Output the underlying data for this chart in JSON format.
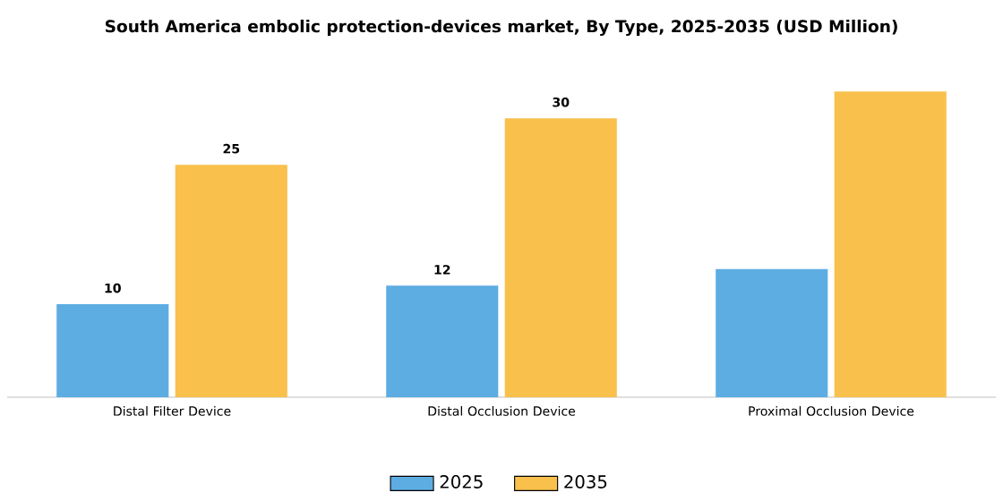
{
  "chart_data": {
    "type": "bar",
    "title": "South America embolic protection-devices market, By Type, 2025-2035 (USD Million)",
    "categories": [
      "Distal Filter Device",
      "Distal Occlusion Device",
      "Proximal Occlusion Device"
    ],
    "series": [
      {
        "name": "2025",
        "color": "#5dade2",
        "values": [
          10,
          12,
          13.8
        ],
        "value_labels": [
          "10",
          "12",
          null
        ]
      },
      {
        "name": "2035",
        "color": "#f9c04c",
        "values": [
          25,
          30,
          32.9
        ],
        "value_labels": [
          "25",
          "30",
          null
        ]
      }
    ],
    "legend": "bottom"
  }
}
